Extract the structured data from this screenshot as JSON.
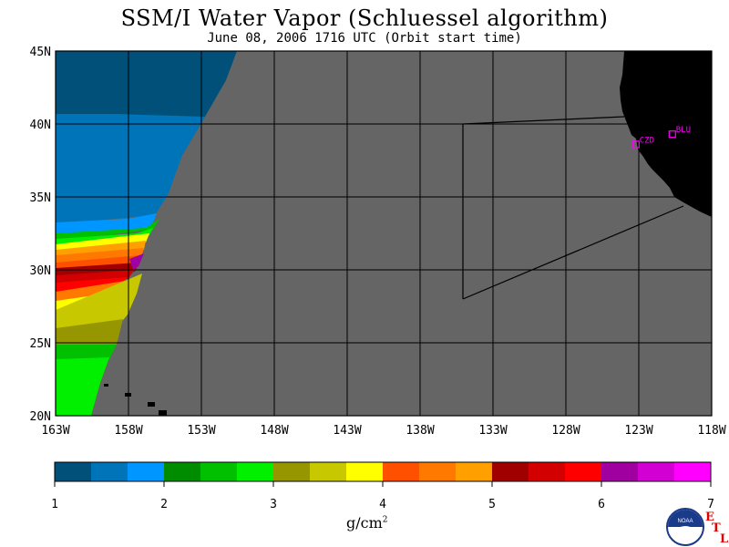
{
  "title": "SSM/I Water Vapor (Schluessel algorithm)",
  "subtitle": "June 08, 2006  1716 UTC  (Orbit start time)",
  "lat_labels": [
    "45N",
    "40N",
    "35N",
    "30N",
    "25N",
    "20N"
  ],
  "lon_labels": [
    "163W",
    "158W",
    "153W",
    "148W",
    "143W",
    "138W",
    "133W",
    "128W",
    "123W",
    "118W"
  ],
  "stations": [
    {
      "id": "CZD",
      "lat": 38.6,
      "lon": -123.2
    },
    {
      "id": "BLU",
      "lat": 39.3,
      "lon": -120.7
    }
  ],
  "colorbar": {
    "ticks": [
      "1",
      "2",
      "3",
      "4",
      "5",
      "6",
      "7"
    ],
    "unit_base": "g/cm",
    "unit_exp": "2",
    "colors": [
      "#00507a",
      "#0074b8",
      "#0096ff",
      "#008c00",
      "#00c000",
      "#00f000",
      "#969600",
      "#c8c800",
      "#ffff00",
      "#ff5000",
      "#ff7800",
      "#ffa000",
      "#a00000",
      "#d20000",
      "#ff0000",
      "#a000a0",
      "#d200d2",
      "#ff00ff"
    ]
  },
  "colors": {
    "land": "#000000",
    "no_data": "#656565",
    "station": "#ff00ff",
    "grid": "#000000"
  },
  "logo": {
    "org": "NOAA",
    "letters": [
      "E",
      "T",
      "L"
    ]
  }
}
